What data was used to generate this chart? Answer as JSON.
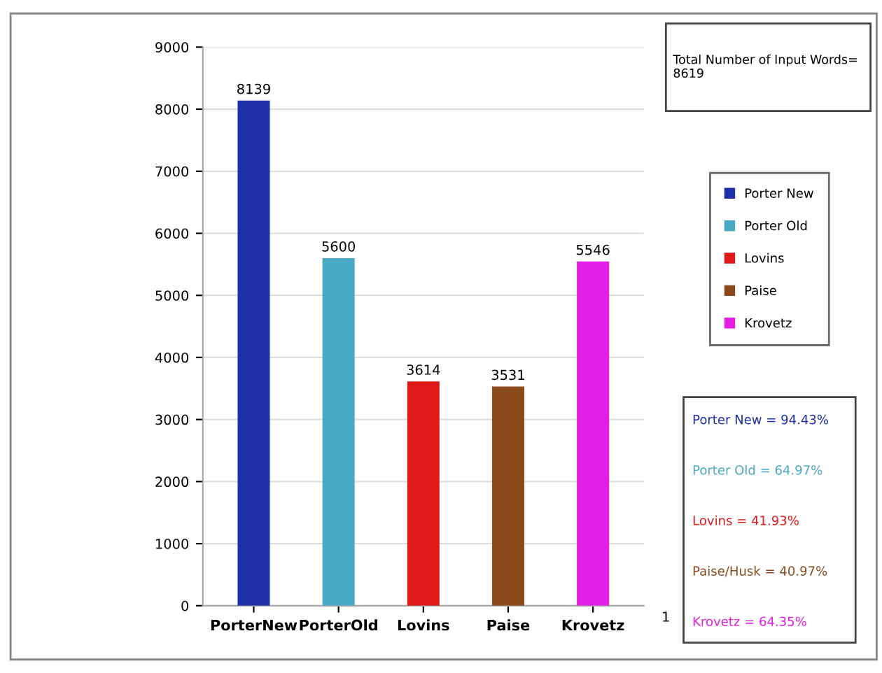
{
  "chart_data": {
    "type": "bar",
    "categories": [
      "PorterNew",
      "PorterOld",
      "Lovins",
      "Paise",
      "Krovetz"
    ],
    "series": [
      {
        "name": "Porter New",
        "color": "#1c2fa8",
        "values": [
          8139,
          null,
          null,
          null,
          null
        ]
      },
      {
        "name": "Porter Old",
        "color": "#4aa9c4",
        "values": [
          null,
          5600,
          null,
          null,
          null
        ]
      },
      {
        "name": "Lovins",
        "color": "#e01a1a",
        "values": [
          null,
          null,
          3614,
          null,
          null
        ]
      },
      {
        "name": "Paise",
        "color": "#8b4a1c",
        "values": [
          null,
          null,
          null,
          3531,
          null
        ]
      },
      {
        "name": "Krovetz",
        "color": "#e21ee2",
        "values": [
          null,
          null,
          null,
          null,
          5546
        ]
      }
    ],
    "data_labels": true,
    "ylim": [
      0,
      9000
    ],
    "yticks": [
      0,
      1000,
      2000,
      3000,
      4000,
      5000,
      6000,
      7000,
      8000,
      9000
    ],
    "grid": "y",
    "legend": "right",
    "annotations": [
      "Total Number of Input Words= 8619",
      "Porter New = 94.43%",
      "Porter Old = 64.97%",
      "Lovins = 41.93%",
      "Paise/Husk = 40.97%",
      "Krovetz = 64.35%",
      "1"
    ]
  }
}
